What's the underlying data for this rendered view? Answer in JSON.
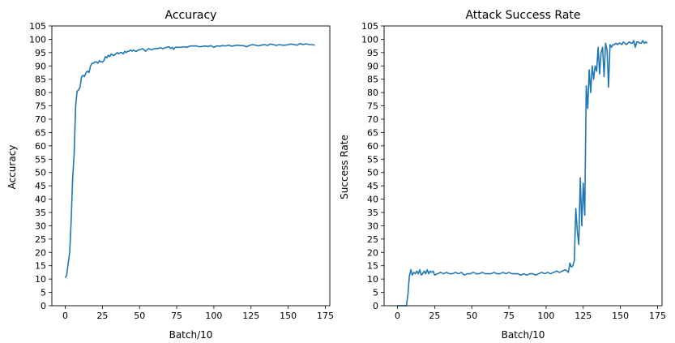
{
  "chart_data": [
    {
      "type": "line",
      "title": "Accuracy",
      "xlabel": "Batch/10",
      "ylabel": "Accuracy",
      "xlim": [
        -9,
        178
      ],
      "ylim": [
        0,
        105
      ],
      "xticks": [
        0,
        25,
        50,
        75,
        100,
        125,
        150,
        175
      ],
      "yticks": [
        0,
        5,
        10,
        15,
        20,
        25,
        30,
        35,
        40,
        45,
        50,
        55,
        60,
        65,
        70,
        75,
        80,
        85,
        90,
        95,
        100,
        105
      ],
      "grid": false,
      "legend": "none",
      "series": [
        {
          "color": "#1f77b4",
          "x": [
            0,
            1,
            2,
            3,
            4,
            5,
            6,
            7,
            8,
            9,
            10,
            11,
            12,
            13,
            14,
            15,
            16,
            17,
            18,
            19,
            20,
            21,
            22,
            23,
            24,
            25,
            26,
            27,
            28,
            29,
            30,
            31,
            32,
            33,
            34,
            35,
            36,
            37,
            38,
            39,
            40,
            41,
            42,
            43,
            44,
            45,
            46,
            47,
            48,
            49,
            50,
            52,
            54,
            56,
            58,
            60,
            62,
            64,
            66,
            68,
            70,
            71,
            72,
            73,
            74,
            76,
            78,
            80,
            82,
            84,
            86,
            88,
            90,
            92,
            94,
            96,
            98,
            100,
            102,
            104,
            106,
            108,
            110,
            112,
            114,
            116,
            118,
            120,
            122,
            124,
            126,
            128,
            130,
            132,
            134,
            136,
            138,
            140,
            142,
            144,
            146,
            148,
            150,
            152,
            154,
            156,
            158,
            160,
            162,
            164,
            166,
            168
          ],
          "y": [
            10.5,
            11.5,
            16,
            20,
            32,
            48,
            57,
            75,
            80.5,
            81,
            82,
            86,
            86.5,
            86,
            87.5,
            88,
            87.5,
            90,
            91,
            91,
            91.5,
            91.5,
            91,
            92,
            91.5,
            91.5,
            92,
            93.5,
            93,
            94,
            93.5,
            94.5,
            94,
            94,
            94.5,
            95,
            94.5,
            95,
            95,
            94.5,
            95.5,
            95,
            95.5,
            95.5,
            96,
            95.5,
            96,
            95.5,
            95.5,
            96,
            96,
            96.5,
            95.5,
            96.5,
            96,
            96.5,
            96.5,
            96.8,
            96.5,
            97,
            97.2,
            96.5,
            97,
            96.2,
            97,
            97,
            97,
            97.2,
            97,
            97.5,
            97.5,
            97.5,
            97.2,
            97.3,
            97.5,
            97.3,
            97.6,
            97,
            97.5,
            97.4,
            97.6,
            97.5,
            97.8,
            97.4,
            97.6,
            97.8,
            97.6,
            97.6,
            97.2,
            97.7,
            98,
            97.8,
            97.5,
            97.8,
            98,
            97.7,
            98.2,
            98,
            97.7,
            98,
            97.8,
            97.8,
            98,
            98.2,
            98,
            97.8,
            98.4,
            98,
            98.3,
            98,
            98,
            97.8
          ]
        }
      ]
    },
    {
      "type": "line",
      "title": "Attack Success Rate",
      "xlabel": "Batch/10",
      "ylabel": "Success Rate",
      "xlim": [
        -9,
        178
      ],
      "ylim": [
        0,
        105
      ],
      "xticks": [
        0,
        25,
        50,
        75,
        100,
        125,
        150,
        175
      ],
      "yticks": [
        0,
        5,
        10,
        15,
        20,
        25,
        30,
        35,
        40,
        45,
        50,
        55,
        60,
        65,
        70,
        75,
        80,
        85,
        90,
        95,
        100,
        105
      ],
      "grid": false,
      "legend": "none",
      "series": [
        {
          "color": "#1f77b4",
          "x": [
            0,
            2,
            4,
            6,
            7,
            8,
            9,
            10,
            11,
            12,
            13,
            14,
            15,
            16,
            17,
            18,
            19,
            20,
            21,
            22,
            23,
            24,
            25,
            27,
            29,
            31,
            33,
            35,
            37,
            39,
            41,
            43,
            45,
            47,
            49,
            51,
            53,
            55,
            57,
            59,
            61,
            63,
            65,
            67,
            69,
            71,
            73,
            75,
            77,
            79,
            81,
            83,
            85,
            87,
            89,
            91,
            93,
            95,
            97,
            99,
            101,
            103,
            105,
            107,
            109,
            111,
            113,
            114,
            115,
            116,
            117,
            118,
            119,
            120,
            121,
            122,
            123,
            124,
            125,
            126,
            127,
            128,
            129,
            130,
            131,
            132,
            133,
            134,
            135,
            136,
            137,
            138,
            139,
            140,
            141,
            142,
            143,
            144,
            145,
            146,
            147,
            148,
            149,
            150,
            151,
            152,
            153,
            154,
            155,
            156,
            157,
            158,
            159,
            160,
            161,
            162,
            163,
            164,
            165,
            166,
            167,
            168
          ],
          "y": [
            0,
            0,
            0,
            0,
            4,
            11,
            13.5,
            11.5,
            12.5,
            12,
            13,
            12,
            13.5,
            11.5,
            12,
            13,
            12,
            13.5,
            12,
            13,
            12.5,
            13,
            11.5,
            12,
            12.5,
            12,
            12.5,
            12,
            12,
            12.5,
            12,
            12.5,
            11.5,
            12,
            12,
            12.5,
            12,
            12,
            12.5,
            12,
            12,
            12,
            12.5,
            12,
            12,
            12.5,
            12,
            12.5,
            12,
            12,
            12,
            11.5,
            12,
            11.5,
            12,
            12,
            11.5,
            12,
            12.5,
            12,
            12.5,
            12,
            12.5,
            13,
            12.5,
            13,
            13.5,
            13,
            12.5,
            16,
            14.5,
            15,
            17,
            36.5,
            28,
            23,
            48,
            30,
            46,
            34,
            82.5,
            74,
            88.5,
            80,
            90,
            85,
            90,
            88,
            97,
            87,
            95,
            97,
            86,
            98.5,
            96,
            82,
            98,
            97,
            98,
            98,
            98.5,
            98,
            98.5,
            98.5,
            98,
            99,
            98.5,
            98,
            98.5,
            99,
            98.5,
            98.5,
            99.5,
            97,
            99,
            99,
            98.5,
            98.5,
            99.5,
            98.5,
            99,
            98.5
          ]
        }
      ]
    }
  ]
}
